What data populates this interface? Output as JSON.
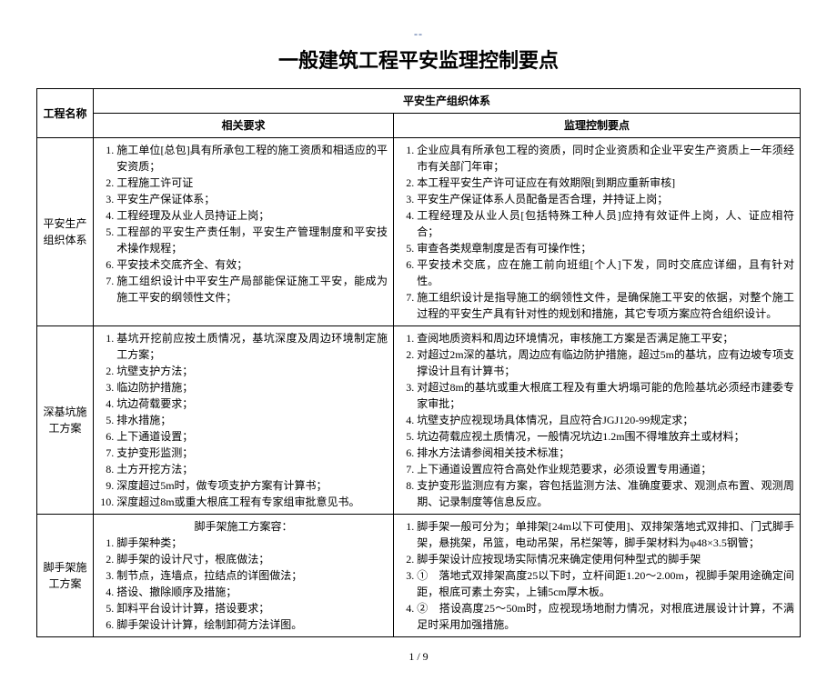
{
  "dashes": "--",
  "title": "一般建筑工程平安监理控制要点",
  "footer": "1 / 9",
  "headers": {
    "project_name": "工程名称",
    "safety_system": "平安生产组织体系",
    "related_req": "相关要求",
    "ctrl_points": "监理控制要点"
  },
  "row1": {
    "name": "平安生产组织体系",
    "req": [
      "施工单位[总包]具有所承包工程的施工资质和相适应的平安资质；",
      "工程施工许可证",
      "平安生产保证体系；",
      "工程经理及从业人员持证上岗；",
      "工程部的平安生产责任制，平安生产管理制度和平安技术操作规程；",
      "平安技术交底齐全、有效；",
      "施工组织设计中平安生产局部能保证施工平安，能成为施工平安的纲领性文件；"
    ],
    "ctrl": [
      "企业应具有所承包工程的资质，同时企业资质和企业平安生产资质上一年须经市有关部门年审；",
      "本工程平安生产许可证应在有效期限[到期应重新审核]",
      "平安生产保证体系人员配备是否合理，并持证上岗；",
      "工程经理及从业人员[包括特殊工种人员]应持有效证件上岗，人、证应相符合；",
      "审查各类规章制度是否有可操作性；",
      "平安技术交底，应在施工前向班组[个人]下发，同时交底应详细，且有针对性。",
      "施工组织设计是指导施工的纲领性文件，是确保施工平安的依据，对整个施工过程的平安生产具有针对性的规划和措施，其它专项方案应符合组织设计。"
    ]
  },
  "row2": {
    "name": "深基坑施工方案",
    "req": [
      "基坑开挖前应按土质情况，基坑深度及周边环境制定施工方案；",
      "坑壁支护方法；",
      "临边防护措施；",
      "坑边荷载要求；",
      "排水措施；",
      "上下通道设置；",
      "支护变形监测；",
      "土方开挖方法；",
      "深度超过5m时，做专项支护方案有计算书；",
      "深度超过8m或重大根底工程有专家组审批意见书。"
    ],
    "ctrl": [
      "查阅地质资料和周边环境情况，审核施工方案是否满足施工平安；",
      "对超过2m深的基坑，周边应有临边防护措施，超过5m的基坑，应有边坡专项支撑设计且有计算书；",
      "对超过8m的基坑或重大根底工程及有重大坍塌可能的危险基坑必须经市建委专家审批；",
      "坑壁支护应视现场具体情况，且应符合JGJ120-99规定求；",
      "坑边荷载应视土质情况，一般情况坑边1.2m围不得堆放弃土或材料；",
      "排水方法请参阅相关技术标准；",
      "上下通道设置应符合高处作业规范要求，必须设置专用通道；",
      "支护变形监测应有方案，容包括监测方法、准确度要求、观测点布置、观测周期、记录制度等信息反应。"
    ]
  },
  "row3": {
    "name": "脚手架施工方案",
    "subhead": "脚手架施工方案容：",
    "req": [
      "脚手架种类；",
      "脚手架的设计尺寸，根底做法；",
      "制节点，连墙点，拉结点的详图做法；",
      "搭设、撤除顺序及措施；",
      "卸料平台设计计算，搭设要求；",
      "脚手架设计计算，绘制卸荷方法详图。"
    ],
    "ctrl": [
      "脚手架一般可分为；单排架[24m以下可使用]、双排架落地式双排扣、门式脚手架，悬挑架，吊篮，电动吊架，吊栏架等，脚手架材料为φ48×3.5钢管；",
      "脚手架设计应按现场实际情况来确定使用何种型式的脚手架",
      "①　落地式双排架高度25以下时，立杆间距1.20～2.00m，视脚手架用途确定间距，根底可素土夯实，上铺5cm厚木板。",
      "②　搭设高度25～50m时，应视现场地耐力情况，对根底进展设计计算，不满足时采用加强措施。"
    ]
  }
}
